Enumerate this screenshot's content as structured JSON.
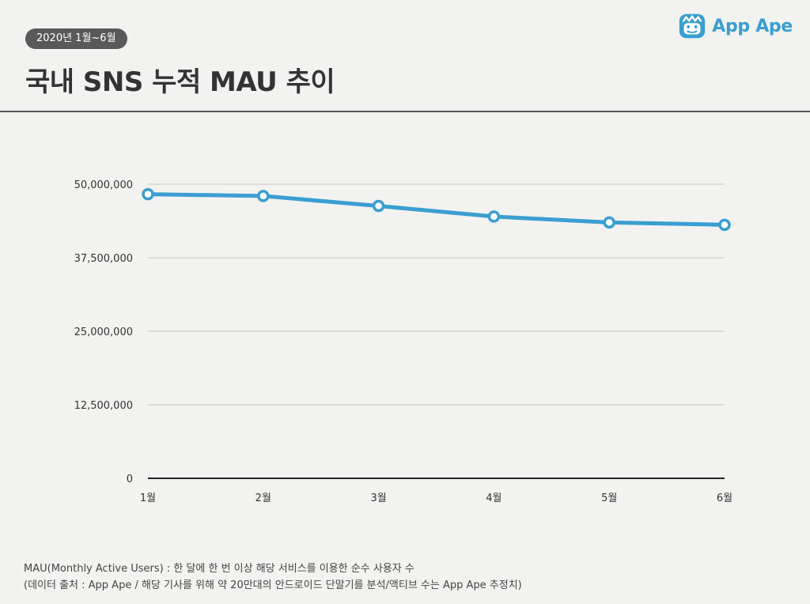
{
  "header": {
    "badge": "2020년 1월~6월",
    "title": "국내 SNS 누적 MAU 추이"
  },
  "brand": {
    "name": "App Ape",
    "icon": "ape-face-icon",
    "color": "#3a9ed0"
  },
  "chart_data": {
    "type": "line",
    "categories": [
      "1월",
      "2월",
      "3월",
      "4월",
      "5월",
      "6월"
    ],
    "series": [
      {
        "values": [
          48300000,
          48000000,
          46300000,
          44500000,
          43500000,
          43100000
        ],
        "color": "#3a9ed0"
      }
    ],
    "ylim": [
      0,
      50000000
    ],
    "yticks": [
      0,
      12500000,
      25000000,
      37500000,
      50000000
    ],
    "ytick_labels": [
      "0",
      "12,500,000",
      "25,000,000",
      "37,500,000",
      "50,000,000"
    ],
    "grid": true,
    "legend": "none"
  },
  "footnotes": [
    "MAU(Monthly Active Users) : 한 달에 한 번 이상 해당 서비스를 이용한 순수 사용자 수",
    "(데이터 출처 : App Ape / 해당 기사를 위해 약 20만대의 안드로이드 단말기를 분석/액티브 수는 App Ape 추정치)"
  ]
}
